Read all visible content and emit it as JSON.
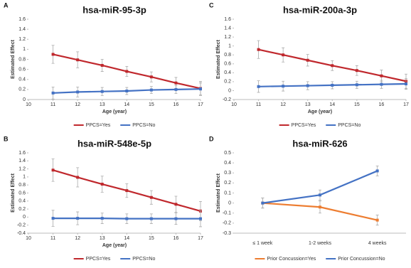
{
  "chart_data": [
    {
      "type": "line",
      "panel": "A",
      "title": "hsa-miR-95-3p",
      "x_label": "Age (year)",
      "y_label": "Estimated Effect",
      "x": [
        11,
        12,
        13,
        14,
        15,
        16,
        17
      ],
      "xlim": [
        10,
        17
      ],
      "xticks": [
        10,
        11,
        12,
        13,
        14,
        15,
        16,
        17
      ],
      "ylim": [
        0,
        1.6
      ],
      "yticks": [
        0,
        0.2,
        0.4,
        0.6,
        0.8,
        1,
        1.2,
        1.4,
        1.6
      ],
      "series": [
        {
          "name": "PPCS=Yes",
          "color": "#c0282d",
          "values": [
            0.9,
            0.79,
            0.68,
            0.56,
            0.45,
            0.33,
            0.22
          ],
          "errors": [
            0.18,
            0.16,
            0.12,
            0.1,
            0.1,
            0.11,
            0.14
          ]
        },
        {
          "name": "PPCS=No",
          "color": "#4472c4",
          "values": [
            0.13,
            0.15,
            0.16,
            0.17,
            0.19,
            0.2,
            0.21
          ],
          "errors": [
            0.12,
            0.1,
            0.08,
            0.07,
            0.07,
            0.08,
            0.12
          ]
        }
      ]
    },
    {
      "type": "line",
      "panel": "B",
      "title": "hsa-miR-548e-5p",
      "x_label": "Age (year)",
      "y_label": "Estimated Effect",
      "x": [
        11,
        12,
        13,
        14,
        15,
        16,
        17
      ],
      "xlim": [
        10,
        17
      ],
      "xticks": [
        10,
        11,
        12,
        13,
        14,
        15,
        16,
        17
      ],
      "ylim": [
        -0.4,
        1.6
      ],
      "yticks": [
        -0.4,
        -0.2,
        0,
        0.2,
        0.4,
        0.6,
        0.8,
        1,
        1.2,
        1.4,
        1.6
      ],
      "series": [
        {
          "name": "PPCS=Yes",
          "color": "#c0282d",
          "values": [
            1.17,
            0.99,
            0.82,
            0.66,
            0.49,
            0.32,
            0.15
          ],
          "errors": [
            0.28,
            0.24,
            0.2,
            0.17,
            0.17,
            0.2,
            0.24
          ]
        },
        {
          "name": "PPCS=No",
          "color": "#4472c4",
          "values": [
            -0.03,
            -0.03,
            -0.03,
            -0.04,
            -0.04,
            -0.04,
            -0.04
          ],
          "errors": [
            0.2,
            0.16,
            0.13,
            0.12,
            0.12,
            0.14,
            0.2
          ]
        }
      ]
    },
    {
      "type": "line",
      "panel": "C",
      "title": "hsa-miR-200a-3p",
      "x_label": "Age (year)",
      "y_label": "Estimated Effect",
      "x": [
        11,
        12,
        13,
        14,
        15,
        16,
        17
      ],
      "xlim": [
        10,
        17
      ],
      "xticks": [
        10,
        11,
        12,
        13,
        14,
        15,
        16,
        17
      ],
      "ylim": [
        -0.2,
        1.6
      ],
      "yticks": [
        -0.2,
        0,
        0.2,
        0.4,
        0.6,
        0.8,
        1,
        1.2,
        1.4,
        1.6
      ],
      "series": [
        {
          "name": "PPCS=Yes",
          "color": "#c0282d",
          "values": [
            0.92,
            0.8,
            0.68,
            0.56,
            0.45,
            0.33,
            0.21
          ],
          "errors": [
            0.2,
            0.16,
            0.13,
            0.11,
            0.11,
            0.13,
            0.16
          ]
        },
        {
          "name": "PPCS=No",
          "color": "#4472c4",
          "values": [
            0.09,
            0.1,
            0.11,
            0.12,
            0.13,
            0.14,
            0.15
          ],
          "errors": [
            0.13,
            0.11,
            0.09,
            0.08,
            0.08,
            0.09,
            0.12
          ]
        }
      ]
    },
    {
      "type": "line",
      "panel": "D",
      "title": "hsa-miR-626",
      "y_label": "Estimated Effect",
      "categories": [
        "≤ 1 week",
        "1-2 weeks",
        "4 weeks"
      ],
      "ylim": [
        -0.3,
        0.5
      ],
      "yticks": [
        -0.3,
        -0.2,
        -0.1,
        0,
        0.1,
        0.2,
        0.3,
        0.4,
        0.5
      ],
      "series": [
        {
          "name": "Prior Concussion=Yes",
          "color": "#ed7d31",
          "values": [
            0,
            -0.04,
            -0.17
          ],
          "errors": [
            0.05,
            0.06,
            0.05
          ]
        },
        {
          "name": "Prior Concussion=No",
          "color": "#4472c4",
          "values": [
            0,
            0.08,
            0.32
          ],
          "errors": [
            0.05,
            0.05,
            0.05
          ]
        }
      ]
    }
  ]
}
